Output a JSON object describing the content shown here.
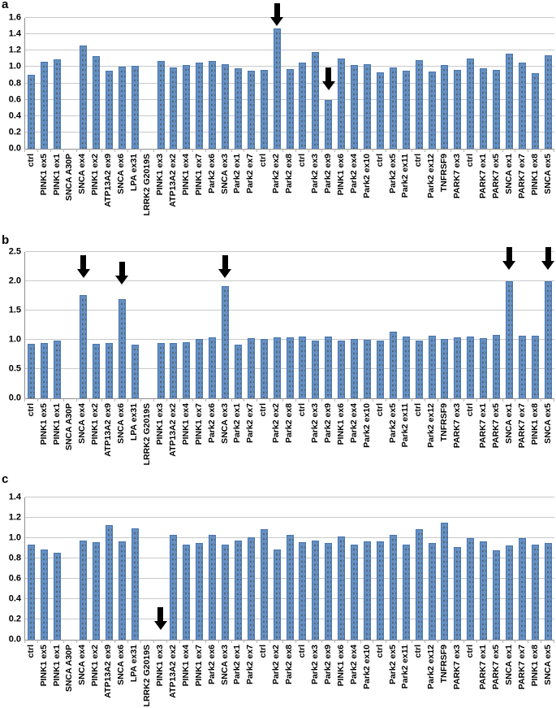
{
  "figure": {
    "description": "Three-panel bar chart figure with panels a, b and c showing relative expression levels for control and Parkinson-related gene exon samples; black arrows mark outlier bars.",
    "colors": {
      "bar": "#6590c5",
      "bar_edge": "#4a76ad",
      "bar_dot": "#40340f",
      "gridline": "#c9c9c9",
      "axis": "#8f8f8f",
      "arrow": "#000000",
      "background": "#ffffff",
      "text": "#000000"
    }
  },
  "categories": [
    "ctrl",
    "PINK1 ex5",
    "PINK1 ex1",
    "SNCA A30P",
    "SNCA ex4",
    "PINK1 ex2",
    "ATP13A2 ex9",
    "SNCA ex6",
    "LPA ex31",
    "LRRK2 G2019S",
    "PINK1 ex3",
    "ATP13A2 ex2",
    "PINK1 ex4",
    "PINK1 ex7",
    "Park2 ex6",
    "SNCA ex3",
    "Park2 ex1",
    "Park2 ex7",
    "ctrl",
    "Park2 ex2",
    "Park2 ex8",
    "ctrl",
    "Park2 ex3",
    "Park2 ex9",
    "PINK1 ex6",
    "Park2 ex4",
    "Park2 ex10",
    "ctrl",
    "Park2 ex5",
    "Park2 ex11",
    "ctrl",
    "Park2 ex12",
    "TNFRSF9",
    "PARK7 ex3",
    "ctrl",
    "PARK7 ex1",
    "PARK7 ex5",
    "SNCA ex1",
    "PARK7 ex7",
    "PINK1 ex8",
    "SNCA ex5"
  ],
  "chart_data": [
    {
      "type": "bar",
      "panel_label": "a",
      "title": "",
      "xlabel": "",
      "ylabel": "",
      "ylim": [
        0,
        1.6
      ],
      "ytick_labels": [
        "0.0",
        "0.2",
        "0.4",
        "0.6",
        "0.8",
        "1.0",
        "1.2",
        "1.4",
        "1.6"
      ],
      "grid": true,
      "legend": false,
      "values": [
        0.9,
        1.06,
        1.09,
        null,
        1.26,
        1.13,
        0.95,
        1.0,
        1.01,
        null,
        1.07,
        0.99,
        1.02,
        1.05,
        1.07,
        1.03,
        0.98,
        0.95,
        0.96,
        1.47,
        0.97,
        1.05,
        1.18,
        0.6,
        1.1,
        1.02,
        1.03,
        0.93,
        0.99,
        0.95,
        1.08,
        0.94,
        1.02,
        0.96,
        1.1,
        0.98,
        0.96,
        1.16,
        1.05,
        0.92,
        1.14
      ],
      "arrows": [
        {
          "category": "Park2 ex2",
          "index": 19,
          "tip_value": 1.5
        },
        {
          "category": "Park2 ex9",
          "index": 23,
          "tip_value": 0.72
        }
      ]
    },
    {
      "type": "bar",
      "panel_label": "b",
      "title": "",
      "xlabel": "",
      "ylabel": "",
      "ylim": [
        0,
        2.5
      ],
      "ytick_labels": [
        "0.0",
        "0.5",
        "1.0",
        "1.5",
        "2.0",
        "2.5"
      ],
      "grid": true,
      "legend": false,
      "values": [
        0.93,
        0.95,
        0.98,
        null,
        1.77,
        0.93,
        0.94,
        1.7,
        0.91,
        null,
        0.94,
        0.94,
        0.96,
        1.02,
        1.04,
        1.91,
        0.91,
        1.03,
        1.02,
        1.04,
        1.04,
        1.05,
        0.98,
        1.05,
        0.99,
        1.02,
        1.0,
        0.98,
        1.14,
        1.05,
        0.99,
        1.07,
        1.02,
        1.04,
        1.05,
        1.03,
        1.08,
        2.0,
        1.07,
        1.07,
        2.0
      ],
      "arrows": [
        {
          "category": "SNCA ex4",
          "index": 4,
          "tip_value": 2.05
        },
        {
          "category": "SNCA ex6",
          "index": 7,
          "tip_value": 1.95
        },
        {
          "category": "SNCA ex3",
          "index": 15,
          "tip_value": 2.06
        },
        {
          "category": "SNCA ex1",
          "index": 37,
          "tip_value": 2.2
        },
        {
          "category": "SNCA ex5",
          "index": 40,
          "tip_value": 2.2
        }
      ]
    },
    {
      "type": "bar",
      "panel_label": "c",
      "title": "",
      "xlabel": "",
      "ylabel": "",
      "ylim": [
        0,
        1.4
      ],
      "ytick_labels": [
        "0.0",
        "0.2",
        "0.4",
        "0.6",
        "0.8",
        "1.0",
        "1.2",
        "1.4"
      ],
      "grid": true,
      "legend": false,
      "values": [
        0.94,
        0.89,
        0.86,
        null,
        0.98,
        0.96,
        1.13,
        0.97,
        1.1,
        null,
        null,
        1.03,
        0.94,
        0.95,
        1.03,
        0.94,
        0.98,
        1.01,
        1.09,
        0.89,
        1.03,
        0.96,
        0.98,
        0.95,
        1.02,
        0.94,
        0.97,
        0.97,
        1.03,
        0.94,
        1.09,
        0.95,
        1.15,
        0.91,
        1.0,
        0.97,
        0.88,
        0.93,
        1.0,
        0.94,
        0.95
      ],
      "arrows": [
        {
          "category": "PINK1 ex3",
          "index": 10,
          "tip_value": 0.1
        }
      ]
    }
  ]
}
